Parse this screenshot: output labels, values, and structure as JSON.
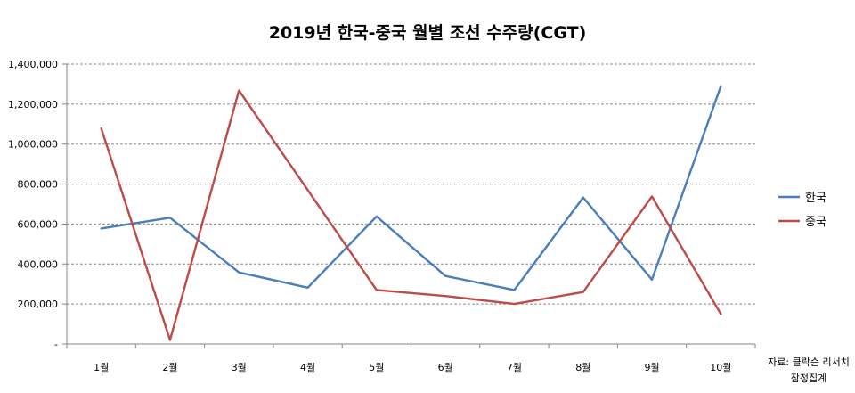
{
  "chart_data": {
    "type": "line",
    "title": "2019년 한국-중국 월별 조선 수주량(CGT)",
    "categories": [
      "1월",
      "2월",
      "3월",
      "4월",
      "5월",
      "6월",
      "7월",
      "8월",
      "9월",
      "10월"
    ],
    "series": [
      {
        "name": "한국",
        "color": "#4a7ebb",
        "values": [
          578000,
          632000,
          358000,
          282000,
          638000,
          340000,
          270000,
          733000,
          322000,
          1290000
        ]
      },
      {
        "name": "중국",
        "color": "#be4b48",
        "values": [
          1078000,
          20000,
          1268000,
          770000,
          270000,
          240000,
          200000,
          260000,
          738000,
          150000
        ]
      }
    ],
    "yticks": [
      "-",
      "200,000",
      "400,000",
      "600,000",
      "800,000",
      "1,000,000",
      "1,200,000",
      "1,400,000"
    ],
    "ylim": [
      0,
      1400000
    ],
    "grid": true,
    "legend_position": "right",
    "source_lines": [
      "자료: 클락슨 리서치",
      "잠정집계"
    ]
  }
}
